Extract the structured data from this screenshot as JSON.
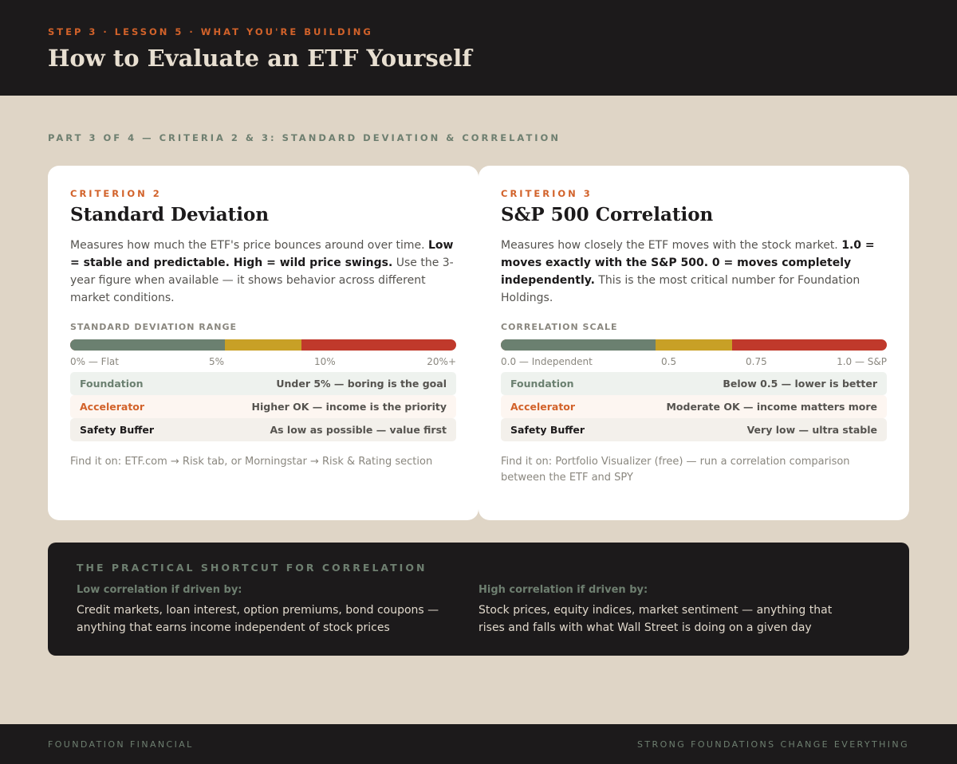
{
  "header": {
    "eyebrow": "STEP 3 · LESSON 5 · WHAT YOU'RE BUILDING",
    "title": "How to Evaluate an ETF Yourself"
  },
  "part_label": "PART 3 OF 4 — CRITERIA 2 & 3: STANDARD DEVIATION & CORRELATION",
  "cards": [
    {
      "label": "CRITERION 2",
      "title": "Standard Deviation",
      "desc_plain_1": "Measures how much the ETF's price bounces around over time. ",
      "desc_bold": "Low = stable and predictable. High = wild price swings.",
      "desc_plain_2": " Use the 3-year figure when available — it shows behavior across different market conditions.",
      "range_label": "STANDARD DEVIATION RANGE",
      "ticks": [
        "0% — Flat",
        "5%",
        "10%",
        "20%+"
      ],
      "rows": [
        {
          "name": "Foundation",
          "value": "Under 5% — boring is the goal"
        },
        {
          "name": "Accelerator",
          "value": "Higher OK — income is the priority"
        },
        {
          "name": "Safety Buffer",
          "value": "As low as possible — value first"
        }
      ],
      "find": "Find it on: ETF.com → Risk tab, or Morningstar → Risk & Rating section"
    },
    {
      "label": "CRITERION 3",
      "title": "S&P 500 Correlation",
      "desc_plain_1": "Measures how closely the ETF moves with the stock market. ",
      "desc_bold": "1.0 = moves exactly with the S&P 500. 0 = moves completely independently.",
      "desc_plain_2": " This is the most critical number for Foundation Holdings.",
      "range_label": "CORRELATION SCALE",
      "ticks": [
        "0.0 — Independent",
        "0.5",
        "0.75",
        "1.0 — S&P"
      ],
      "rows": [
        {
          "name": "Foundation",
          "value": "Below 0.5 — lower is better"
        },
        {
          "name": "Accelerator",
          "value": "Moderate OK — income matters more"
        },
        {
          "name": "Safety Buffer",
          "value": "Very low — ultra stable"
        }
      ],
      "find": "Find it on: Portfolio Visualizer (free) — run a correlation comparison between the ETF and SPY"
    }
  ],
  "shortcut": {
    "title": "THE PRACTICAL SHORTCUT FOR CORRELATION",
    "low_head": "Low correlation if driven by:",
    "low_body": "Credit markets, loan interest, option premiums, bond coupons — anything that earns income independent of stock prices",
    "high_head": "High correlation if driven by:",
    "high_body": "Stock prices, equity indices, market sentiment — anything that rises and falls with what Wall Street is doing on a given day"
  },
  "footer": {
    "left": "FOUNDATION FINANCIAL",
    "right": "STRONG FOUNDATIONS CHANGE EVERYTHING"
  }
}
